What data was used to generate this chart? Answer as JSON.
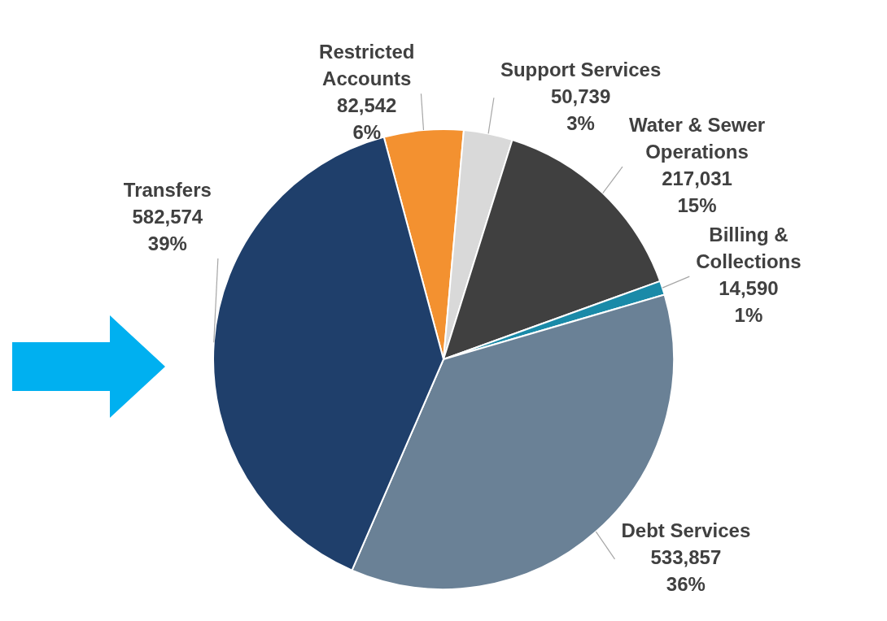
{
  "chart_data": {
    "type": "pie",
    "categories": [
      "Restricted Accounts",
      "Support Services",
      "Water & Sewer Operations",
      "Billing & Collections",
      "Debt Services",
      "Transfers"
    ],
    "values": [
      82542,
      50739,
      217031,
      14590,
      533857,
      582574
    ],
    "value_labels": [
      "82,542\n6%",
      "50,739\n3%",
      "217,031\n15%",
      "14,590\n1%",
      "533,857\n36%",
      "582,574\n39%"
    ],
    "colors": [
      "#f39130",
      "#d9d9d9",
      "#404040",
      "#1a8aa8",
      "#6a8196",
      "#1f3f6b"
    ],
    "legend": false
  }
}
